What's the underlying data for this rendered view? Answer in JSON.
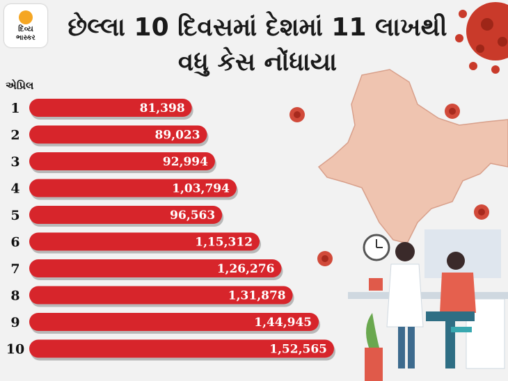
{
  "brand": {
    "line1": "દિવ્ય",
    "line2": "ભાસ્કર"
  },
  "title": {
    "line1": "છેલ્લા 10 દિવસમાં દેશમાં 11 લાખથી",
    "line2": "વધુ કેસ નોંધાયા"
  },
  "colors": {
    "bar": "#d7252b",
    "bar_shadow": "#b8b8b8",
    "text": "#1a1a1a",
    "accent": "#f5a623"
  },
  "chart_data": {
    "type": "bar",
    "orientation": "horizontal",
    "title": "છેલ્લા 10 દિવસમાં દેશમાં 11 લાખથી વધુ કેસ નોંધાયા",
    "category_axis_label": "એપ્રિલ",
    "categories": [
      "1",
      "2",
      "3",
      "4",
      "5",
      "6",
      "7",
      "8",
      "9",
      "10"
    ],
    "values": [
      81398,
      89023,
      92994,
      103794,
      96563,
      115312,
      126276,
      131878,
      144945,
      152565
    ],
    "value_labels": [
      "81,398",
      "89,023",
      "92,994",
      "1,03,794",
      "96,563",
      "1,15,312",
      "1,26,276",
      "1,31,878",
      "1,44,945",
      "1,52,565"
    ],
    "grid": false,
    "legend": "none"
  }
}
